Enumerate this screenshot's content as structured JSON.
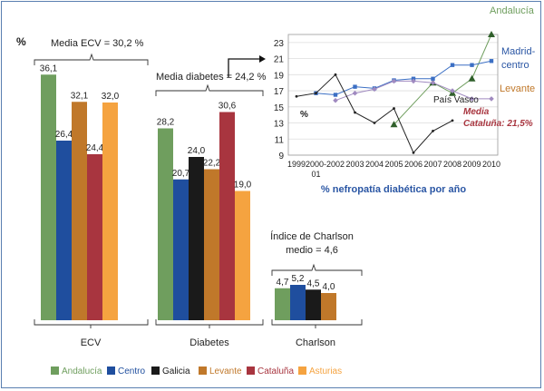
{
  "chart_data": [
    {
      "type": "bar",
      "ylabel": "%",
      "groups": [
        "ECV",
        "Diabetes",
        "Charlson"
      ],
      "series": [
        {
          "name": "Andalucía",
          "color": "#6f9e5e",
          "values": [
            36.1,
            28.2,
            4.7
          ]
        },
        {
          "name": "Centro",
          "color": "#1f4e9e",
          "values": [
            26.4,
            20.7,
            5.2
          ]
        },
        {
          "name": "Galicia",
          "color": "#1a1a1a",
          "values": [
            null,
            24.0,
            4.5
          ]
        },
        {
          "name": "Levante",
          "color": "#c0782a",
          "values": [
            32.1,
            22.2,
            4.0
          ]
        },
        {
          "name": "Cataluña",
          "color": "#a8353f",
          "values": [
            24.4,
            30.6,
            null
          ]
        },
        {
          "name": "Asturias",
          "color": "#f5a340",
          "values": [
            32.0,
            19.0,
            null
          ]
        }
      ],
      "value_labels": {
        "ECV": [
          "36,1",
          "26,4",
          "",
          "32,1",
          "24,4",
          "32,0"
        ],
        "Diabetes": [
          "28,2",
          "20,7",
          "24,0",
          "22,2",
          "30,6",
          "19,0"
        ],
        "Charlson": [
          "4,7",
          "5,2",
          "4,5",
          "4,0",
          "",
          ""
        ]
      },
      "annotations": {
        "ecv_mean": "Media ECV = 30,2 %",
        "diabetes_mean": "Media diabetes = 24,2 %",
        "charlson_mean_line1": "Índice de Charlson",
        "charlson_mean_line2": "medio = 4,6"
      },
      "legend_placement": "bottom"
    },
    {
      "type": "line",
      "xlabel": "% nefropatía diabética por año",
      "x_ticks": [
        "1999",
        "2000-\n01",
        "2002",
        "2003",
        "2004",
        "2005",
        "2006",
        "2007",
        "2008",
        "2009",
        "2010"
      ],
      "y_ticks": [
        9,
        11,
        13,
        15,
        17,
        19,
        21,
        23
      ],
      "ylim": [
        9,
        24
      ],
      "y_inner_label": "%",
      "grid": true,
      "series": [
        {
          "name": "Andalucía",
          "color": "#6f9e5e",
          "marker": "triangle",
          "points": [
            [
              5,
              12.8
            ],
            [
              7,
              18.0
            ],
            [
              8,
              16.7
            ],
            [
              9,
              18.5
            ],
            [
              10,
              24.0
            ]
          ]
        },
        {
          "name": "Madrid-centro",
          "color": "#3b6fc4",
          "marker": "square",
          "points": [
            [
              1,
              16.7
            ],
            [
              2,
              16.5
            ],
            [
              3,
              17.5
            ],
            [
              4,
              17.3
            ],
            [
              5,
              18.3
            ],
            [
              6,
              18.5
            ],
            [
              7,
              18.5
            ],
            [
              8,
              20.2
            ],
            [
              9,
              20.2
            ],
            [
              10,
              20.7
            ]
          ]
        },
        {
          "name": "Levante",
          "color": "#a08ac0",
          "marker": "diamond",
          "points": [
            [
              2,
              15.8
            ],
            [
              3,
              16.7
            ],
            [
              4,
              17.2
            ],
            [
              5,
              18.2
            ],
            [
              6,
              18.2
            ],
            [
              7,
              18.0
            ],
            [
              8,
              17.0
            ],
            [
              9,
              16.0
            ],
            [
              10,
              16.0
            ]
          ]
        },
        {
          "name": "País Vasco",
          "color": "#222222",
          "marker": "dot",
          "points": [
            [
              0,
              16.3
            ],
            [
              1,
              16.7
            ],
            [
              2,
              19.0
            ],
            [
              3,
              14.3
            ],
            [
              4,
              13.0
            ],
            [
              5,
              14.8
            ],
            [
              6,
              9.3
            ],
            [
              7,
              12.0
            ],
            [
              8,
              13.3
            ]
          ]
        }
      ],
      "series_labels": {
        "andalucia": "Andalucía",
        "madrid_line1": "Madrid-",
        "madrid_line2": "centro",
        "levante": "Levante",
        "pais_vasco": "País Vasco",
        "media_line1": "Media",
        "media_line2": "Cataluña: 21,5%"
      }
    }
  ]
}
